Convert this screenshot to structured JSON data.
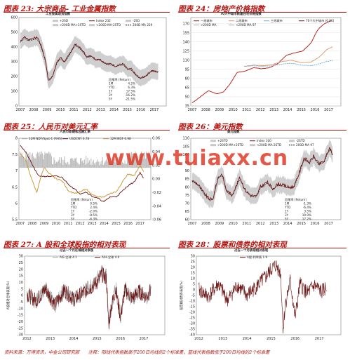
{
  "footer": "资料来源：万得资讯，中金公司研究部　　注释：阳线代表指数高于200日均线的2个标准差，蓝线代表指数低于200日均线的2个标准差",
  "watermark": "www.tuiaxx.cn",
  "colors": {
    "accent": "#b3140f",
    "main": "#6b1414",
    "band": "#c8c8c8",
    "dash": "#111111"
  },
  "chart_data": [
    {
      "id": "p23",
      "title": "图表 23: 大宗商品- 工业金属指数",
      "type": "line",
      "chart_title": "工业金属现货指数",
      "xticks": [
        "2007",
        "2008",
        "2009",
        "2010",
        "2011",
        "2012",
        "2013",
        "2014",
        "2015",
        "2016",
        "2017"
      ],
      "ylim": [
        0,
        600
      ],
      "yticks": [
        0,
        100,
        200,
        300,
        400,
        500,
        600
      ],
      "legend": [
        {
          "label": "+2SD",
          "style": "band"
        },
        {
          "label": "Index 232",
          "style": "main"
        },
        {
          "label": "-2SD",
          "style": "band"
        },
        {
          "label": ">200D MA+2STD",
          "style": "band"
        },
        {
          "label": "<200D MA-2STD",
          "style": "band"
        },
        {
          "label": "200D MA 229",
          "style": "dash"
        }
      ],
      "ret_head": [
        "回报率",
        "(Return)"
      ],
      "returns": [
        [
          "1M",
          "4.2%"
        ],
        [
          "YTD",
          "6.3%"
        ],
        [
          "1Y",
          "17.5%"
        ],
        [
          "3Y",
          "-16.2%"
        ],
        [
          "5Y",
          "-21.5%"
        ]
      ],
      "series": {
        "x": [
          2007.0,
          2007.3,
          2007.6,
          2008.0,
          2008.3,
          2008.6,
          2008.9,
          2009.1,
          2009.4,
          2009.7,
          2010.0,
          2010.3,
          2010.6,
          2010.9,
          2011.1,
          2011.4,
          2011.7,
          2012.0,
          2012.3,
          2012.6,
          2012.9,
          2013.2,
          2013.5,
          2013.8,
          2014.1,
          2014.4,
          2014.7,
          2015.0,
          2015.3,
          2015.6,
          2015.9,
          2016.2,
          2016.5,
          2016.8,
          2017.1,
          2017.3
        ],
        "values": [
          440,
          470,
          450,
          460,
          465,
          400,
          300,
          170,
          200,
          290,
          330,
          300,
          340,
          390,
          420,
          400,
          370,
          330,
          345,
          315,
          320,
          300,
          285,
          285,
          270,
          280,
          285,
          250,
          250,
          215,
          190,
          195,
          215,
          240,
          235,
          232
        ]
      }
    },
    {
      "id": "p24",
      "title": "图表 24：房地产价格指数",
      "type": "line",
      "chart_title": "70大中城市新建住宅价格指数",
      "xticks": [
        "2007",
        "2008",
        "2009",
        "2010",
        "2011",
        "2012",
        "2013",
        "2014",
        "2015",
        "2016",
        "2017"
      ],
      "ylim": [
        35,
        180
      ],
      "yticks": [
        35,
        50,
        65,
        80,
        95,
        110,
        125,
        140,
        155,
        170
      ],
      "legend": [
        {
          "label": "一线城市",
          "color": "#8b1a1a"
        },
        {
          "label": "二线城市",
          "color": "#e0956a"
        },
        {
          "label": "三线城市",
          "color": "#6fa8dc"
        },
        {
          "label": "70个大中城市 (0.06)",
          "color": "#6b1414"
        },
        {
          "label": ">200D MA",
          "color": "#aaaaaa"
        },
        {
          "label": "<200D MA 97",
          "color": "#aaaaaa"
        }
      ],
      "series": [
        {
          "name": "一线城市",
          "color": "#b3140f",
          "x": [
            2007.0,
            2007.6,
            2008.2,
            2008.8,
            2009.3,
            2009.8,
            2010.3,
            2010.9,
            2011.5,
            2012.1,
            2012.7,
            2013.3,
            2013.9,
            2014.5,
            2015.1,
            2015.7,
            2016.2,
            2016.7,
            2017.2
          ],
          "values": [
            40,
            50,
            60,
            55,
            58,
            72,
            90,
            92,
            98,
            96,
            98,
            105,
            118,
            122,
            125,
            138,
            160,
            170,
            175
          ]
        },
        {
          "name": "二线城市",
          "color": "#e0956a",
          "x": [
            2010.8,
            2011.5,
            2012.2,
            2012.9,
            2013.6,
            2014.3,
            2015.0,
            2015.7,
            2016.3,
            2016.9,
            2017.3
          ],
          "values": [
            100,
            102,
            101,
            103,
            108,
            110,
            106,
            107,
            115,
            128,
            132
          ]
        },
        {
          "name": "三线城市",
          "color": "#6fa8dc",
          "x": [
            2010.8,
            2011.5,
            2012.2,
            2012.9,
            2013.6,
            2014.3,
            2015.0,
            2015.7,
            2016.3,
            2016.9,
            2017.3
          ],
          "values": [
            100,
            101,
            100,
            101,
            104,
            105,
            102,
            101,
            104,
            108,
            110
          ]
        }
      ]
    },
    {
      "id": "p25",
      "title": "图表 25：人民币对美元汇率",
      "type": "line",
      "chart_title": "人民币即期和远期汇率",
      "xticks": [
        "2007",
        "2008",
        "2009",
        "2010",
        "2011",
        "2012",
        "2013",
        "2014",
        "2015",
        "2016",
        "2017"
      ],
      "ylim": [
        5.5,
        8.0
      ],
      "yticks": [
        5.5,
        6.0,
        6.5,
        7.0,
        7.5,
        8.0
      ],
      "y2lim": [
        -0.06,
        0.06
      ],
      "y2ticks": [
        "-0.06",
        "-0.04",
        "-0.02",
        "0.00",
        "0.02",
        "0.04",
        "0.06"
      ],
      "legend": [
        {
          "label": "12M NDF/Spot-1 (RHS)",
          "color": "#aaaaaa"
        },
        {
          "label": "USDCNY  6.78",
          "color": "#6b1414"
        },
        {
          "label": "12M NDF  6.98",
          "color": "#c8902a"
        }
      ],
      "ret_head": [
        "回报率",
        "(Return)"
      ],
      "returns": [
        [
          "1M",
          "0.5%"
        ],
        [
          "YTD",
          "2.4%"
        ],
        [
          "1Y",
          "-2.0%"
        ],
        [
          "3Y",
          "-8.5%"
        ],
        [
          "5Y",
          "-6.3%"
        ]
      ],
      "series": [
        {
          "name": "USDCNY",
          "color": "#6b1414",
          "x": [
            2007.0,
            2007.5,
            2008.0,
            2008.5,
            2009.0,
            2010.0,
            2010.5,
            2011.0,
            2011.5,
            2012.0,
            2012.5,
            2013.0,
            2013.5,
            2014.0,
            2014.5,
            2015.0,
            2015.6,
            2016.0,
            2016.5,
            2017.0,
            2017.3
          ],
          "values": [
            7.8,
            7.55,
            7.2,
            6.85,
            6.83,
            6.83,
            6.8,
            6.6,
            6.45,
            6.3,
            6.35,
            6.22,
            6.15,
            6.05,
            6.2,
            6.2,
            6.4,
            6.55,
            6.65,
            6.95,
            6.78
          ]
        },
        {
          "name": "12M NDF",
          "color": "#c8902a",
          "x": [
            2007.0,
            2007.5,
            2008.0,
            2008.4,
            2008.8,
            2009.0,
            2009.5,
            2010.0,
            2010.5,
            2011.0,
            2011.5,
            2012.0,
            2012.5,
            2013.0,
            2013.5,
            2014.0,
            2014.5,
            2015.0,
            2015.6,
            2016.0,
            2016.5,
            2017.0,
            2017.3
          ],
          "values": [
            7.55,
            7.3,
            6.7,
            6.35,
            6.9,
            7.1,
            6.9,
            6.75,
            6.7,
            6.4,
            6.3,
            6.35,
            6.45,
            6.25,
            6.2,
            6.2,
            6.3,
            6.35,
            6.7,
            6.9,
            6.85,
            7.15,
            6.98
          ]
        }
      ]
    },
    {
      "id": "p26",
      "title": "图表 26：美元指数",
      "type": "line",
      "chart_title": "美元指数",
      "xticks": [
        "2007",
        "2008",
        "2009",
        "2010",
        "2011",
        "2012",
        "2013",
        "2014",
        "2015",
        "2016",
        "2017"
      ],
      "ylim": [
        60,
        110
      ],
      "yticks": [
        60,
        65,
        70,
        75,
        80,
        85,
        90,
        95,
        100,
        105,
        110
      ],
      "legend": [
        {
          "label": "+2STD",
          "style": "band"
        },
        {
          "label": "Index  100",
          "style": "main"
        },
        {
          "label": "-2STD",
          "style": "band"
        },
        {
          "label": ">200D MA+2STD",
          "style": "band"
        },
        {
          "label": "<200D MA-2STD",
          "style": "band"
        },
        {
          "label": "200D MA  97",
          "style": "dash"
        }
      ],
      "ret_head": [
        "回报率",
        "(Return)"
      ],
      "returns": [
        [
          "1M",
          "-1.3%"
        ],
        [
          "YTD",
          "-6.4%"
        ],
        [
          "1Y",
          "3.5%"
        ],
        [
          "3Y",
          "19.9%"
        ],
        [
          "5Y",
          "17.2%"
        ]
      ],
      "series": {
        "x": [
          2007.0,
          2007.4,
          2007.8,
          2008.2,
          2008.5,
          2008.9,
          2009.2,
          2009.5,
          2009.9,
          2010.2,
          2010.5,
          2010.9,
          2011.3,
          2011.7,
          2012.0,
          2012.5,
          2012.9,
          2013.3,
          2013.7,
          2014.0,
          2014.4,
          2014.6,
          2014.9,
          2015.2,
          2015.6,
          2015.9,
          2016.3,
          2016.7,
          2016.9,
          2017.1,
          2017.3
        ],
        "values": [
          84,
          82,
          77,
          73,
          72,
          86,
          88,
          78,
          75,
          80,
          86,
          78,
          75,
          74,
          80,
          83,
          79,
          82,
          81,
          80,
          80,
          83,
          90,
          98,
          95,
          99,
          94,
          96,
          101,
          104,
          100
        ]
      }
    },
    {
      "id": "p27",
      "title": "图表 27: A 股和全球股指的相对表现",
      "type": "line",
      "chart_title": "过去一个月区域相对表现",
      "ylabel": "A股相对全球表现(%)",
      "xticks": [
        "2012",
        "2013",
        "2014",
        "2015",
        "2016",
        "2017"
      ],
      "ylim": [
        -30,
        30
      ],
      "yticks": [
        -30,
        -25,
        -20,
        -15,
        -10,
        -5,
        0,
        5,
        10,
        15,
        20,
        25,
        30
      ],
      "legend": [
        {
          "label": "A/E-全球  4.1",
          "color": "#aaaaaa"
        },
        {
          "label": "A/H-全球  4.0",
          "color": "#6b1414"
        }
      ],
      "series": [
        {
          "name": "A/H-全球",
          "color": "#999999",
          "x": [
            2012.0,
            2012.4,
            2012.8,
            2013.2,
            2013.6,
            2014.0,
            2014.4,
            2014.8,
            2015.0,
            2015.2,
            2015.4,
            2015.5,
            2015.6,
            2015.8,
            2016.0,
            2016.2,
            2016.5,
            2016.8,
            2017.1,
            2017.3
          ],
          "values": [
            2,
            -5,
            6,
            -8,
            5,
            -4,
            3,
            8,
            12,
            18,
            15,
            -25,
            -10,
            6,
            -18,
            5,
            -3,
            4,
            -2,
            4
          ]
        },
        {
          "name": "A/E-全球",
          "color": "#6b1414",
          "x": [
            2012.0,
            2012.4,
            2012.8,
            2013.2,
            2013.6,
            2014.0,
            2014.4,
            2014.8,
            2015.0,
            2015.2,
            2015.4,
            2015.5,
            2015.6,
            2015.8,
            2016.0,
            2016.2,
            2016.5,
            2016.8,
            2017.1,
            2017.3
          ],
          "values": [
            1,
            -4,
            5,
            -7,
            4,
            -3,
            2,
            7,
            10,
            16,
            13,
            -22,
            -9,
            5,
            -16,
            4,
            -2,
            3,
            -1,
            4
          ]
        }
      ]
    },
    {
      "id": "p28",
      "title": "图表 28：股票和债券的相对表现",
      "type": "line",
      "chart_title": "过去一个月表现相对表现",
      "ylabel": "股票相对债券表现(%)",
      "xticks": [
        "2012",
        "2013",
        "2014",
        "2015",
        "2016",
        "2017"
      ],
      "ylim": [
        -40,
        30
      ],
      "yticks": [
        -40,
        -35,
        -30,
        -25,
        -20,
        -15,
        -10,
        -5,
        0,
        5,
        10,
        15,
        20,
        25,
        30
      ],
      "legend": [
        {
          "label": "A股-利率债  1.9",
          "color": "#6b1414"
        }
      ],
      "series": [
        {
          "name": "A股-利率债",
          "color": "#6b1414",
          "x": [
            2012.0,
            2012.4,
            2012.8,
            2013.2,
            2013.6,
            2014.0,
            2014.4,
            2014.8,
            2015.0,
            2015.2,
            2015.4,
            2015.5,
            2015.6,
            2015.8,
            2016.0,
            2016.2,
            2016.5,
            2016.8,
            2017.1,
            2017.3
          ],
          "values": [
            0,
            -6,
            5,
            -9,
            4,
            -5,
            3,
            12,
            18,
            22,
            15,
            -35,
            -12,
            8,
            -25,
            5,
            -3,
            4,
            -2,
            1.9
          ]
        }
      ]
    }
  ]
}
